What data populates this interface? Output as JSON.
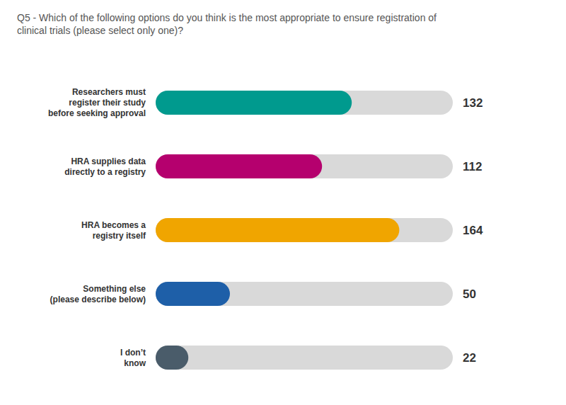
{
  "chart_data": {
    "type": "bar",
    "orientation": "horizontal",
    "title": "Q5 - Which of the following options do you think is the most appropriate to ensure registration of\nclinical trials (please select only one)?",
    "categories": [
      "Researchers must\nregister their study\nbefore seeking approval",
      "HRA supplies data\ndirectly to a registry",
      "HRA becomes a\nregistry itself",
      "Something else\n(please describe below)",
      "I don’t\nknow"
    ],
    "values": [
      132,
      112,
      164,
      50,
      22
    ],
    "colors": [
      "#009a8e",
      "#b5006e",
      "#f0a500",
      "#1e5fa8",
      "#4a5c6a"
    ],
    "xlim": [
      0,
      200
    ],
    "data_labels": true,
    "tick_labels": "y",
    "grid": false
  }
}
